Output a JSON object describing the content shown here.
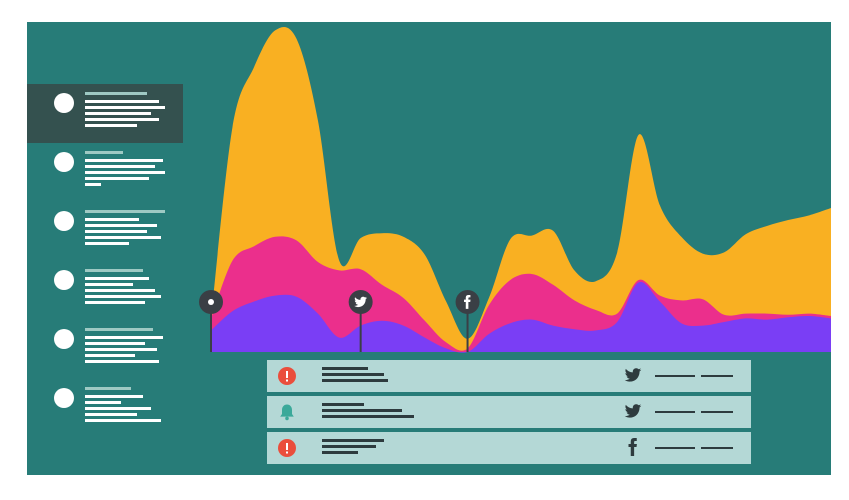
{
  "colors": {
    "background": "#277c78",
    "sidebar_active": "#34514f",
    "series_gold": "#f9b022",
    "series_pink": "#eb2f8c",
    "series_purple": "#7a3ef5",
    "feed_row": "#b4d8d6",
    "alert_red": "#ea4e3c",
    "bell_teal": "#3ba99a",
    "ink": "#2e3b3e"
  },
  "sidebar": {
    "items": [
      {
        "active": true
      },
      {
        "active": false
      },
      {
        "active": false
      },
      {
        "active": false
      },
      {
        "active": false
      },
      {
        "active": false
      }
    ]
  },
  "chart_data": {
    "type": "area",
    "stacked": true,
    "title": "",
    "xlabel": "",
    "ylabel": "",
    "x": [
      0,
      1,
      2,
      3,
      4,
      5,
      6,
      7,
      8,
      9,
      10,
      11,
      12,
      13,
      14,
      15,
      16,
      17,
      18,
      19,
      20,
      21,
      22,
      23,
      24,
      25,
      26,
      27,
      28,
      29
    ],
    "ylim": [
      0,
      275
    ],
    "grid": false,
    "legend": "none",
    "series": [
      {
        "color": "#7a3ef5",
        "values": [
          18,
          34,
          42,
          47,
          46,
          32,
          12,
          22,
          26,
          22,
          12,
          3,
          0,
          15,
          24,
          27,
          22,
          19,
          18,
          25,
          58,
          42,
          24,
          22,
          25,
          28,
          27,
          29,
          30,
          28
        ]
      },
      {
        "color": "#eb2f8c",
        "values": [
          10,
          42,
          46,
          49,
          47,
          43,
          56,
          47,
          30,
          23,
          14,
          5,
          3,
          24,
          36,
          38,
          34,
          24,
          17,
          7,
          2,
          5,
          19,
          22,
          6,
          4,
          5,
          2,
          2,
          2
        ]
      },
      {
        "color": "#f9b022",
        "values": [
          0,
          111,
          149,
          172,
          168,
          118,
          8,
          26,
          43,
          51,
          55,
          34,
          8,
          6,
          34,
          32,
          45,
          25,
          24,
          51,
          121,
          75,
          53,
          38,
          52,
          66,
          73,
          79,
          82,
          90
        ]
      }
    ],
    "markers": [
      {
        "x": 0,
        "icon": "record-icon"
      },
      {
        "x": 7,
        "icon": "twitter-icon"
      },
      {
        "x": 12,
        "icon": "facebook-icon"
      }
    ]
  },
  "feed": [
    {
      "icon": "alert-icon",
      "source": "twitter-icon"
    },
    {
      "icon": "bell-icon",
      "source": "twitter-icon"
    },
    {
      "icon": "alert-icon",
      "source": "facebook-icon"
    }
  ]
}
